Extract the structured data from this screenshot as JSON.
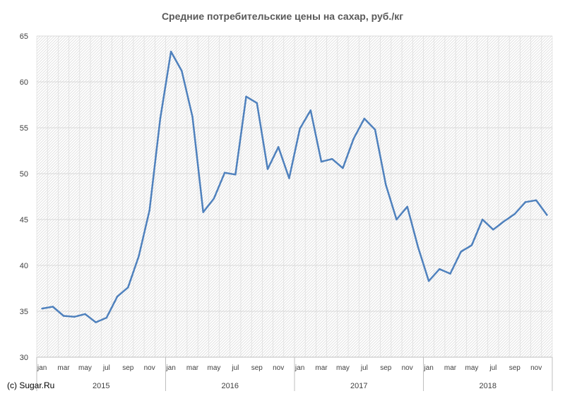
{
  "chart_data": {
    "type": "line",
    "title": "Средние потребительские цены на сахар, руб./кг",
    "xlabel": "",
    "ylabel": "",
    "ylim": [
      30,
      65
    ],
    "yticks": [
      30,
      35,
      40,
      45,
      50,
      55,
      60,
      65
    ],
    "grid": true,
    "legend": "none",
    "line_color": "#4f81bd",
    "years": [
      "2015",
      "2016",
      "2017",
      "2018"
    ],
    "month_labels": [
      "jan",
      "mar",
      "may",
      "jul",
      "sep",
      "nov"
    ],
    "x": [
      "2015-01",
      "2015-02",
      "2015-03",
      "2015-04",
      "2015-05",
      "2015-06",
      "2015-07",
      "2015-08",
      "2015-09",
      "2015-10",
      "2015-11",
      "2015-12",
      "2016-01",
      "2016-02",
      "2016-03",
      "2016-04",
      "2016-05",
      "2016-06",
      "2016-07",
      "2016-08",
      "2016-09",
      "2016-10",
      "2016-11",
      "2016-12",
      "2017-01",
      "2017-02",
      "2017-03",
      "2017-04",
      "2017-05",
      "2017-06",
      "2017-07",
      "2017-08",
      "2017-09",
      "2017-10",
      "2017-11",
      "2017-12",
      "2018-01",
      "2018-02",
      "2018-03",
      "2018-04",
      "2018-05",
      "2018-06",
      "2018-07",
      "2018-08",
      "2018-09",
      "2018-10",
      "2018-11",
      "2018-12"
    ],
    "series": [
      {
        "values": [
          35.3,
          35.5,
          34.5,
          34.4,
          34.7,
          33.8,
          34.3,
          36.6,
          37.6,
          41.0,
          46.0,
          56.0,
          63.3,
          61.2,
          56.2,
          45.8,
          47.3,
          50.1,
          49.9,
          58.4,
          57.7,
          50.5,
          52.9,
          49.5,
          54.9,
          56.9,
          51.3,
          51.6,
          50.6,
          53.8,
          56.0,
          54.8,
          48.8,
          45.0,
          46.4,
          42.0,
          38.3,
          39.6,
          39.1,
          41.5,
          42.2,
          45.0,
          43.9,
          44.8,
          45.6,
          46.9,
          47.1,
          45.5
        ]
      }
    ]
  },
  "credit": "(c) Sugar.Ru"
}
